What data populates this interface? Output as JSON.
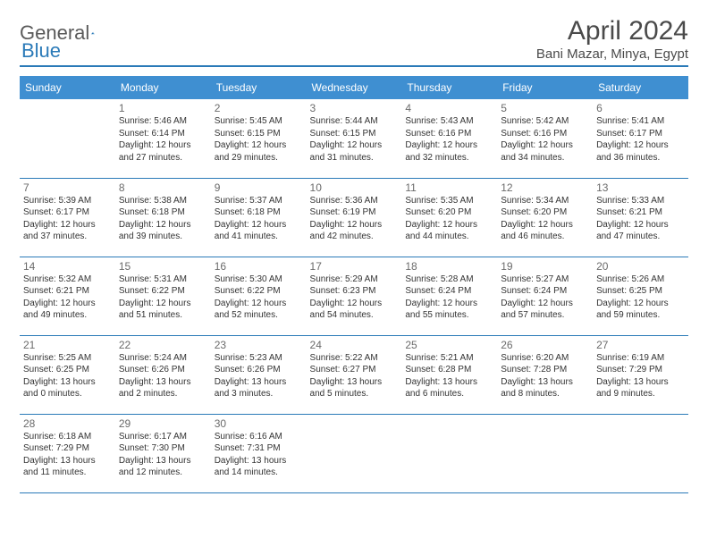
{
  "logo": {
    "text1": "General",
    "text2": "Blue"
  },
  "title": "April 2024",
  "location": "Bani Mazar, Minya, Egypt",
  "colors": {
    "header_bg": "#3f8fd1",
    "header_text": "#ffffff",
    "accent": "#2a7ab8",
    "body_text": "#333333",
    "daynum": "#6b6b6b",
    "logo_gray": "#5a5a5a"
  },
  "typography": {
    "title_fontsize": 30,
    "location_fontsize": 15,
    "dayheader_fontsize": 12,
    "daynum_fontsize": 12,
    "cell_fontsize": 10
  },
  "day_headers": [
    "Sunday",
    "Monday",
    "Tuesday",
    "Wednesday",
    "Thursday",
    "Friday",
    "Saturday"
  ],
  "weeks": [
    [
      null,
      {
        "n": "1",
        "sr": "5:46 AM",
        "ss": "6:14 PM",
        "dl": "12 hours and 27 minutes."
      },
      {
        "n": "2",
        "sr": "5:45 AM",
        "ss": "6:15 PM",
        "dl": "12 hours and 29 minutes."
      },
      {
        "n": "3",
        "sr": "5:44 AM",
        "ss": "6:15 PM",
        "dl": "12 hours and 31 minutes."
      },
      {
        "n": "4",
        "sr": "5:43 AM",
        "ss": "6:16 PM",
        "dl": "12 hours and 32 minutes."
      },
      {
        "n": "5",
        "sr": "5:42 AM",
        "ss": "6:16 PM",
        "dl": "12 hours and 34 minutes."
      },
      {
        "n": "6",
        "sr": "5:41 AM",
        "ss": "6:17 PM",
        "dl": "12 hours and 36 minutes."
      }
    ],
    [
      {
        "n": "7",
        "sr": "5:39 AM",
        "ss": "6:17 PM",
        "dl": "12 hours and 37 minutes."
      },
      {
        "n": "8",
        "sr": "5:38 AM",
        "ss": "6:18 PM",
        "dl": "12 hours and 39 minutes."
      },
      {
        "n": "9",
        "sr": "5:37 AM",
        "ss": "6:18 PM",
        "dl": "12 hours and 41 minutes."
      },
      {
        "n": "10",
        "sr": "5:36 AM",
        "ss": "6:19 PM",
        "dl": "12 hours and 42 minutes."
      },
      {
        "n": "11",
        "sr": "5:35 AM",
        "ss": "6:20 PM",
        "dl": "12 hours and 44 minutes."
      },
      {
        "n": "12",
        "sr": "5:34 AM",
        "ss": "6:20 PM",
        "dl": "12 hours and 46 minutes."
      },
      {
        "n": "13",
        "sr": "5:33 AM",
        "ss": "6:21 PM",
        "dl": "12 hours and 47 minutes."
      }
    ],
    [
      {
        "n": "14",
        "sr": "5:32 AM",
        "ss": "6:21 PM",
        "dl": "12 hours and 49 minutes."
      },
      {
        "n": "15",
        "sr": "5:31 AM",
        "ss": "6:22 PM",
        "dl": "12 hours and 51 minutes."
      },
      {
        "n": "16",
        "sr": "5:30 AM",
        "ss": "6:22 PM",
        "dl": "12 hours and 52 minutes."
      },
      {
        "n": "17",
        "sr": "5:29 AM",
        "ss": "6:23 PM",
        "dl": "12 hours and 54 minutes."
      },
      {
        "n": "18",
        "sr": "5:28 AM",
        "ss": "6:24 PM",
        "dl": "12 hours and 55 minutes."
      },
      {
        "n": "19",
        "sr": "5:27 AM",
        "ss": "6:24 PM",
        "dl": "12 hours and 57 minutes."
      },
      {
        "n": "20",
        "sr": "5:26 AM",
        "ss": "6:25 PM",
        "dl": "12 hours and 59 minutes."
      }
    ],
    [
      {
        "n": "21",
        "sr": "5:25 AM",
        "ss": "6:25 PM",
        "dl": "13 hours and 0 minutes."
      },
      {
        "n": "22",
        "sr": "5:24 AM",
        "ss": "6:26 PM",
        "dl": "13 hours and 2 minutes."
      },
      {
        "n": "23",
        "sr": "5:23 AM",
        "ss": "6:26 PM",
        "dl": "13 hours and 3 minutes."
      },
      {
        "n": "24",
        "sr": "5:22 AM",
        "ss": "6:27 PM",
        "dl": "13 hours and 5 minutes."
      },
      {
        "n": "25",
        "sr": "5:21 AM",
        "ss": "6:28 PM",
        "dl": "13 hours and 6 minutes."
      },
      {
        "n": "26",
        "sr": "6:20 AM",
        "ss": "7:28 PM",
        "dl": "13 hours and 8 minutes."
      },
      {
        "n": "27",
        "sr": "6:19 AM",
        "ss": "7:29 PM",
        "dl": "13 hours and 9 minutes."
      }
    ],
    [
      {
        "n": "28",
        "sr": "6:18 AM",
        "ss": "7:29 PM",
        "dl": "13 hours and 11 minutes."
      },
      {
        "n": "29",
        "sr": "6:17 AM",
        "ss": "7:30 PM",
        "dl": "13 hours and 12 minutes."
      },
      {
        "n": "30",
        "sr": "6:16 AM",
        "ss": "7:31 PM",
        "dl": "13 hours and 14 minutes."
      },
      null,
      null,
      null,
      null
    ]
  ],
  "labels": {
    "sunrise": "Sunrise: ",
    "sunset": "Sunset: ",
    "daylight": "Daylight: "
  }
}
